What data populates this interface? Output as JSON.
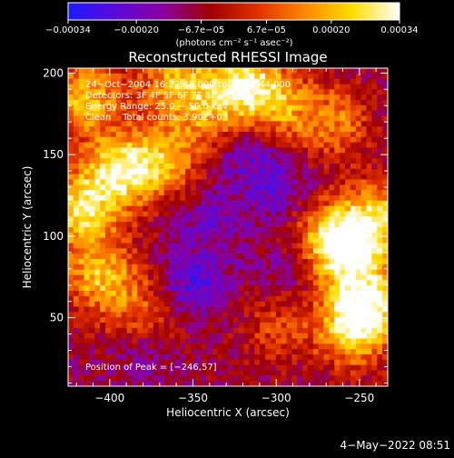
{
  "chart_data": {
    "type": "heatmap",
    "title": "Reconstructed RHESSI Image",
    "xlabel": "Heliocentric X (arcsec)",
    "ylabel": "Heliocentric Y (arcsec)",
    "xlim": [
      -425,
      -233
    ],
    "ylim": [
      8,
      203
    ],
    "x_ticks": [
      -400,
      -350,
      -300,
      -250
    ],
    "y_ticks": [
      50,
      100,
      150,
      200
    ],
    "x_tick_labels": [
      "−400",
      "−350",
      "−300",
      "−250"
    ],
    "y_tick_labels": [
      "50",
      "100",
      "150",
      "200"
    ],
    "grid": false,
    "colorbar": {
      "min": -0.00034,
      "max": 0.00034,
      "ticks": [
        -0.00034,
        -0.0002,
        -6.7e-05,
        6.7e-05,
        0.0002,
        0.00034
      ],
      "tick_labels": [
        "−0.00034",
        "−0.00020",
        "−6.7e−05",
        "6.7e−05",
        "0.00020",
        "0.00034"
      ],
      "units_label": "(photons cm⁻² s⁻¹ asec⁻²)",
      "colors": [
        "#1b1bff",
        "#5a0ad8",
        "#8a00a0",
        "#a00000",
        "#e03000",
        "#ff8800",
        "#ffdd00",
        "#ffffff"
      ]
    },
    "annotations": {
      "time_range": "24−Oct−2004 16:22:48.000 to 16:26:44.000",
      "detectors": "Detectors: 3F 4F 5F 6F 7F 8F, Att 0",
      "energy_range": "Energy Range: 25.0 − 50.0 keV",
      "method": "Clean    Total counts: 3.90E+03",
      "peak": "Position of Peak = [−246,57]"
    },
    "peak_position": [
      -246,
      57
    ],
    "emission_regions": [
      {
        "x": -415,
        "y": 185,
        "strength": 0.8
      },
      {
        "x": -395,
        "y": 140,
        "strength": 0.85
      },
      {
        "x": -418,
        "y": 115,
        "strength": 0.9
      },
      {
        "x": -405,
        "y": 75,
        "strength": 0.75
      },
      {
        "x": -360,
        "y": 195,
        "strength": 0.7
      },
      {
        "x": -370,
        "y": 145,
        "strength": 0.65
      },
      {
        "x": -340,
        "y": 170,
        "strength": 0.5
      },
      {
        "x": -320,
        "y": 195,
        "strength": 0.85
      },
      {
        "x": -300,
        "y": 180,
        "strength": 0.6
      },
      {
        "x": -265,
        "y": 170,
        "strength": 0.55
      },
      {
        "x": -246,
        "y": 57,
        "strength": 1.0
      },
      {
        "x": -258,
        "y": 90,
        "strength": 0.85
      },
      {
        "x": -240,
        "y": 110,
        "strength": 0.8
      },
      {
        "x": -270,
        "y": 100,
        "strength": 0.5
      },
      {
        "x": -255,
        "y": 40,
        "strength": 0.6
      },
      {
        "x": -300,
        "y": 45,
        "strength": 0.35
      },
      {
        "x": -380,
        "y": 50,
        "strength": 0.45
      }
    ],
    "negative_regions": [
      {
        "x": -350,
        "y": 70,
        "strength": 0.9
      },
      {
        "x": -320,
        "y": 155,
        "strength": 0.8
      },
      {
        "x": -300,
        "y": 130,
        "strength": 0.7
      },
      {
        "x": -340,
        "y": 110,
        "strength": 0.6
      },
      {
        "x": -380,
        "y": 30,
        "strength": 0.5
      },
      {
        "x": -290,
        "y": 80,
        "strength": 0.5
      }
    ]
  },
  "footer": {
    "date": "4−May−2022 08:51"
  }
}
